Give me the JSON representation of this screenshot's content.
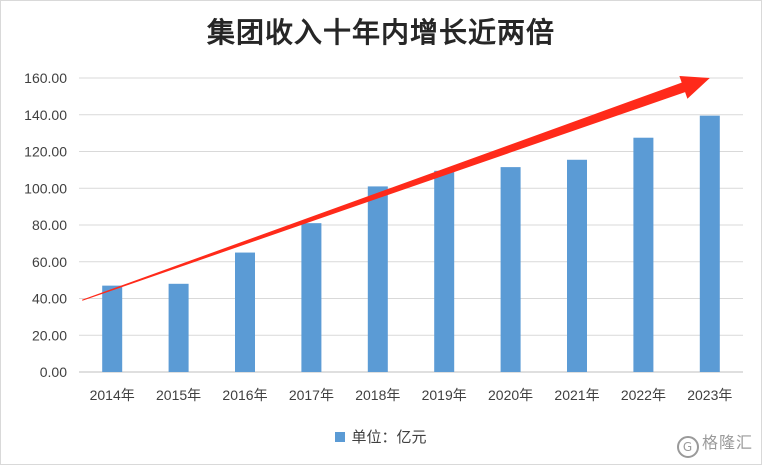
{
  "chart_data": {
    "type": "bar",
    "title": "集团收入十年内增长近两倍",
    "categories": [
      "2014年",
      "2015年",
      "2016年",
      "2017年",
      "2018年",
      "2019年",
      "2020年",
      "2021年",
      "2022年",
      "2023年"
    ],
    "series": [
      {
        "name": "单位：亿元",
        "values": [
          47.0,
          48.0,
          65.0,
          81.0,
          101.0,
          109.5,
          111.5,
          115.5,
          127.5,
          139.5
        ],
        "color": "#5b9bd5"
      }
    ],
    "yticks": [
      "0.00",
      "20.00",
      "40.00",
      "60.00",
      "80.00",
      "100.00",
      "120.00",
      "140.00",
      "160.00"
    ],
    "ylim": [
      0,
      160
    ],
    "grid": true,
    "legend_position": "bottom",
    "trend_arrow": {
      "from": {
        "category": "2014年",
        "value": 51
      },
      "to": {
        "category": "2023年",
        "value": 160
      },
      "color": "#ff2a1a"
    }
  },
  "watermark": "格隆汇"
}
